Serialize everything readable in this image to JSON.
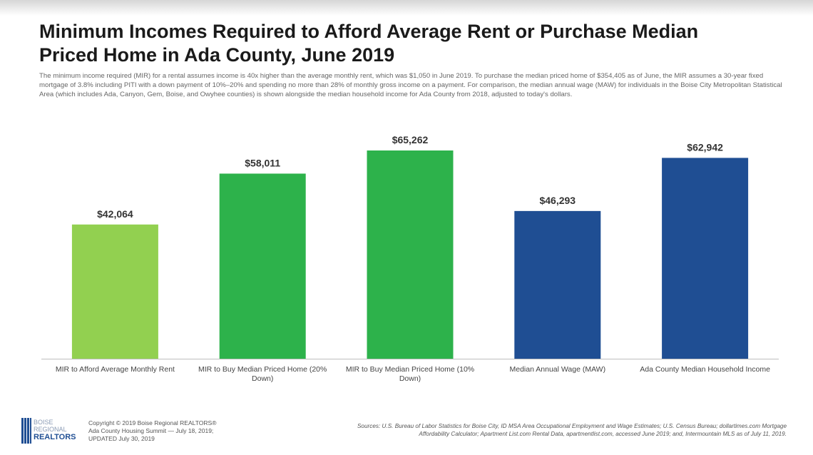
{
  "chart_data": {
    "type": "bar",
    "title": "Minimum Incomes Required to Afford Average Rent or Purchase Median Priced Home in Ada County, June 2019",
    "subtitle": "The minimum income required (MIR) for a rental assumes income is 40x higher than the average monthly rent, which was $1,050 in June 2019. To purchase the median priced home of $354,405 as of June, the MIR assumes a 30-year fixed mortgage of 3.8% including PITI with a down payment of 10%–20% and spending no more than 28% of monthly gross income on a payment. For comparison, the median annual wage (MAW) for individuals in the Boise City Metropolitan Statistical Area (which includes Ada, Canyon, Gem, Boise, and Owyhee counties) is shown alongside the median household income for Ada County from 2018, adjusted to today's dollars.",
    "categories": [
      "MIR to Afford Average Monthly Rent",
      "MIR to Buy Median Priced Home (20% Down)",
      "MIR to Buy Median Priced Home (10% Down)",
      "Median Annual Wage (MAW)",
      "Ada County Median Household Income"
    ],
    "values": [
      42064,
      58011,
      65262,
      46293,
      62942
    ],
    "value_labels": [
      "$42,064",
      "$58,011",
      "$65,262",
      "$46,293",
      "$62,942"
    ],
    "colors": [
      "#92d050",
      "#2db24b",
      "#2db24b",
      "#1f4e93",
      "#1f4e93"
    ]
  },
  "footer": {
    "logo": [
      "BOISE",
      "REGIONAL",
      "REALTORS"
    ],
    "copyright": [
      "Copyright © 2019 Boise Regional REALTORS®",
      "Ada County Housing Summit — July 18, 2019;",
      "UPDATED July 30, 2019"
    ],
    "sources": "Sources: U.S. Bureau of Labor Statistics for Boise City, ID MSA Area Occupational Employment and Wage Estimates; U.S. Census Bureau; dollartimes.com Mortgage Affordability Calculator; Apartment List.com Rental Data, apartmentlist.com, accessed June 2019; and, Intermountain MLS as of July 11, 2019."
  }
}
